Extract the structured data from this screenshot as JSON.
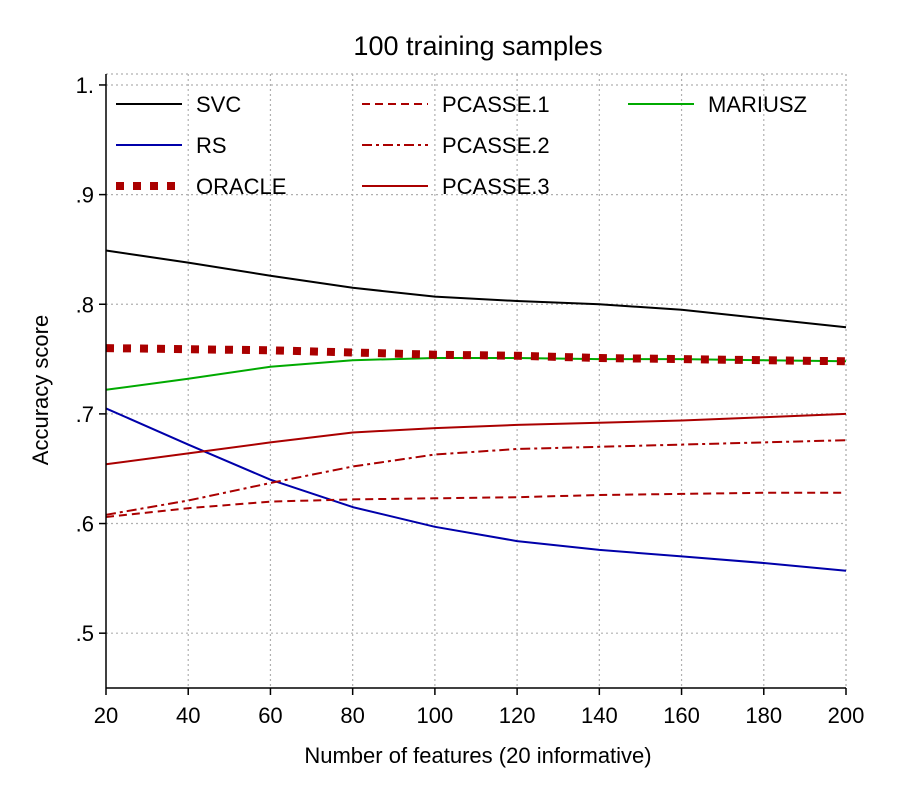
{
  "chart_data": {
    "type": "line",
    "title": "100 training samples",
    "xlabel": "Number of features (20 informative)",
    "ylabel": "Accuracy score",
    "x": [
      20,
      40,
      60,
      80,
      100,
      120,
      140,
      160,
      180,
      200
    ],
    "xlim": [
      20,
      200
    ],
    "ylim": [
      0.45,
      1.01
    ],
    "xticks": [
      20,
      40,
      60,
      80,
      100,
      120,
      140,
      160,
      180,
      200
    ],
    "xtick_labels": [
      "20",
      "40",
      "60",
      "80",
      "100",
      "120",
      "140",
      "160",
      "180",
      "200"
    ],
    "yticks": [
      0.5,
      0.6,
      0.7,
      0.8,
      0.9,
      1.0
    ],
    "ytick_labels": [
      ".5",
      ".6",
      ".7",
      ".8",
      ".9",
      "1."
    ],
    "grid": true,
    "legend_position": "top",
    "series": [
      {
        "name": "SVC",
        "color": "#000000",
        "style": "solid",
        "values": [
          0.849,
          0.838,
          0.826,
          0.815,
          0.807,
          0.803,
          0.8,
          0.795,
          0.787,
          0.779
        ]
      },
      {
        "name": "RS",
        "color": "#0000aa",
        "style": "solid",
        "values": [
          0.705,
          0.672,
          0.64,
          0.615,
          0.597,
          0.584,
          0.576,
          0.57,
          0.564,
          0.557
        ]
      },
      {
        "name": "ORACLE",
        "color": "#aa0000",
        "style": "dotted",
        "values": [
          0.76,
          0.759,
          0.758,
          0.756,
          0.754,
          0.753,
          0.751,
          0.75,
          0.749,
          0.748
        ]
      },
      {
        "name": "PCASSE.1",
        "color": "#aa0000",
        "style": "dashed",
        "values": [
          0.606,
          0.614,
          0.62,
          0.622,
          0.623,
          0.624,
          0.626,
          0.627,
          0.628,
          0.628
        ]
      },
      {
        "name": "PCASSE.2",
        "color": "#aa0000",
        "style": "dashdot",
        "values": [
          0.608,
          0.621,
          0.637,
          0.652,
          0.663,
          0.668,
          0.67,
          0.672,
          0.674,
          0.676
        ]
      },
      {
        "name": "PCASSE.3",
        "color": "#aa0000",
        "style": "solid",
        "values": [
          0.654,
          0.664,
          0.674,
          0.683,
          0.687,
          0.69,
          0.692,
          0.694,
          0.697,
          0.7
        ]
      },
      {
        "name": "MARIUSZ",
        "color": "#00aa00",
        "style": "solid",
        "values": [
          0.722,
          0.732,
          0.743,
          0.749,
          0.751,
          0.751,
          0.75,
          0.75,
          0.749,
          0.748
        ]
      }
    ]
  }
}
